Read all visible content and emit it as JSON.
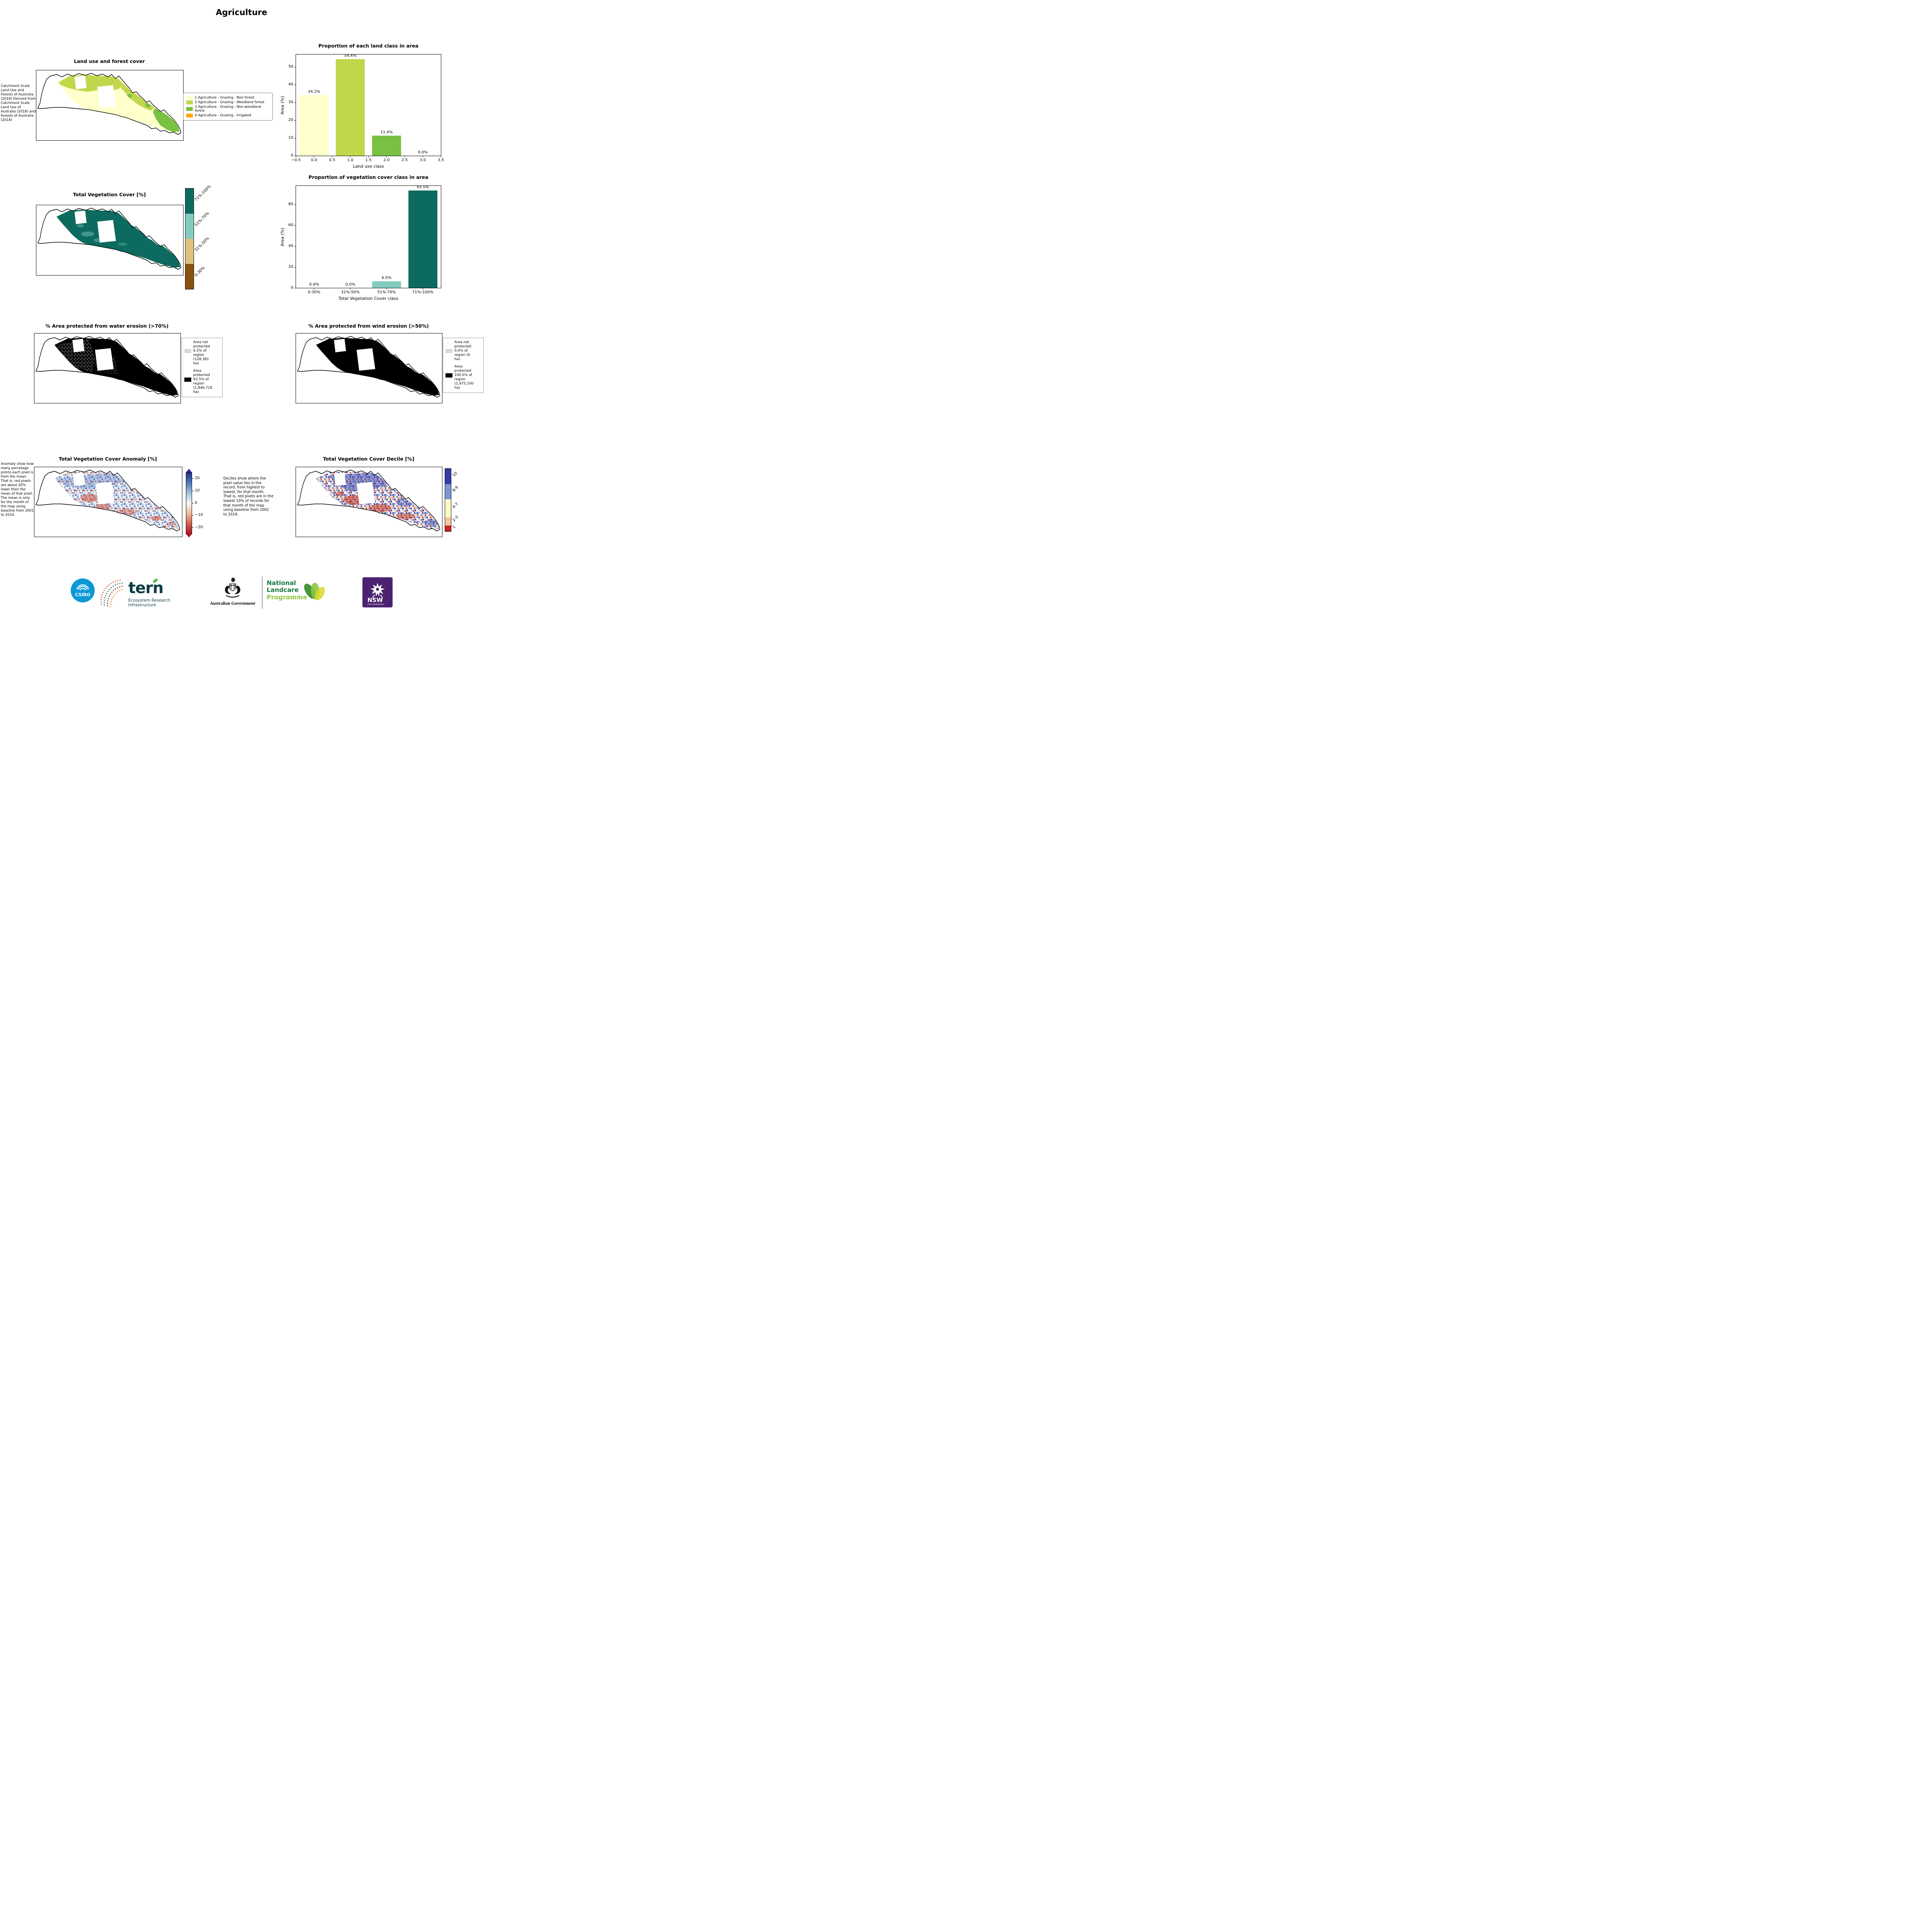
{
  "page": {
    "title": "Agriculture"
  },
  "land_use_map": {
    "title": "Land use and forest cover",
    "note": " Catchment Scale Land Use and Forests of Australia (2018) Derived from Catchment Scale Land Use of Australia (2018) and Forests of Australia (2018)",
    "legend": [
      {
        "label": "1 Agriculture - Grazing - Non forest",
        "color": "#ffffcc"
      },
      {
        "label": "2 Agriculture - Grazing - Woodland forest",
        "color": "#c2d64b"
      },
      {
        "label": "3 Agriculture - Grazing - Non-woodland forest",
        "color": "#78c143"
      },
      {
        "label": "4 Agriculture - Grazing - Irrigated",
        "color": "#ffa500"
      }
    ]
  },
  "veg_cover_map": {
    "title": "Total Vegetation Cover [%]",
    "colorbar": [
      {
        "label": "71%-100%",
        "color": "#0d6a5f"
      },
      {
        "label": "51%-70%",
        "color": "#82cdc0"
      },
      {
        "label": "31%-50%",
        "color": "#dec27d"
      },
      {
        "label": "0-30%",
        "color": "#8a5111"
      }
    ]
  },
  "water_erosion_map": {
    "title": "% Area protected from water erosion (>70%)",
    "legend": [
      {
        "label": "Area not protected 6.5% of region (128,381 ha)",
        "color": "#d9d9d9"
      },
      {
        "label": "Area protected 93.5% of region (1,846,718 ha)",
        "color": "#000000"
      }
    ]
  },
  "wind_erosion_map": {
    "title": "% Area protected from wind erosion (>50%)",
    "legend": [
      {
        "label": "Area not protected 0.0% of region (0 ha)",
        "color": "#d9d9d9"
      },
      {
        "label": "Area protected 100.0% of region (1,975,100 ha)",
        "color": "#000000"
      }
    ]
  },
  "anomaly_map": {
    "title": "Total Vegetation Cover Anomaly [%]",
    "note": "Anomaly show how many percetage points each pixel is from the mean. That is, red pixels are about 20% lower than the mean of that pixel. The mean is only for the month of the map using baseline from 2001 to 2019.",
    "colorbar_ticks": [
      "20",
      "10",
      "0",
      "−10",
      "−20"
    ],
    "colorbar_top_color": "#2b338f",
    "colorbar_mid_color": "#f7f7f7",
    "colorbar_bottom_color": "#a81529"
  },
  "decile_map": {
    "title": "Total Vegetation Cover Decile [%]",
    "note": "Deciles show where the pixel value lies in the record, from highest to lowest, for that month. That is, red pixels are in the lowest 10% of records for that month of the map using baseline from 2001 to 2019.",
    "colorbar": [
      {
        "label": "10",
        "color": "#333da8"
      },
      {
        "label": "8-9",
        "color": "#7b96d4"
      },
      {
        "label": "4-7",
        "color": "#fbfbc3"
      },
      {
        "label": "2-3",
        "color": "#f6c2a9"
      },
      {
        "label": "1",
        "color": "#c7251d"
      }
    ]
  },
  "chart_data": [
    {
      "type": "bar",
      "title": "Proportion of each land class in area",
      "xlabel": "Land use class",
      "ylabel": "Area (%)",
      "x": [
        0,
        1,
        2,
        3
      ],
      "values": [
        34.2,
        54.4,
        11.4,
        0.0
      ],
      "bar_labels": [
        "34.2%",
        "54.4%",
        "11.4%",
        "0.0%"
      ],
      "bar_colors": [
        "#ffffcc",
        "#c2d64b",
        "#78c143",
        "#ffa500"
      ],
      "bar_width": 0.8,
      "xlim": [
        -0.5,
        3.5
      ],
      "ylim": [
        0,
        57
      ],
      "xtick_values": [
        -0.5,
        0.0,
        0.5,
        1.0,
        1.5,
        2.0,
        2.5,
        3.0,
        3.5
      ],
      "xticks": [
        "−0.5",
        "0.0",
        "0.5",
        "1.0",
        "1.5",
        "2.0",
        "2.5",
        "3.0",
        "3.5"
      ],
      "yticks": [
        0,
        10,
        20,
        30,
        40,
        50
      ]
    },
    {
      "type": "bar",
      "title": "Proportion of vegetation cover class in area",
      "xlabel": "Total Vegetation Cover class",
      "ylabel": "Area (%)",
      "categories": [
        "0-30%",
        "31%-50%",
        "51%-70%",
        "71%-100%"
      ],
      "values": [
        0.0,
        0.0,
        6.5,
        93.5
      ],
      "bar_labels": [
        "0.0%",
        "0.0%",
        "6.5%",
        "93.5%"
      ],
      "bar_colors": [
        "#8a5111",
        "#dec27d",
        "#82cdc0",
        "#0d6a5f"
      ],
      "ylim": [
        0,
        98
      ],
      "yticks": [
        0,
        20,
        40,
        60,
        80
      ]
    }
  ],
  "footer": {
    "csiro": "CSIRO",
    "tern": "tern",
    "tern_sub": "Ecosystem Research Infrastructure",
    "aus_gov": "Australian Government",
    "landcare_1": "National",
    "landcare_2": "Landcare",
    "landcare_3": "Programme",
    "nsw": "NSW",
    "nsw_sub": "GOVERNMENT"
  }
}
